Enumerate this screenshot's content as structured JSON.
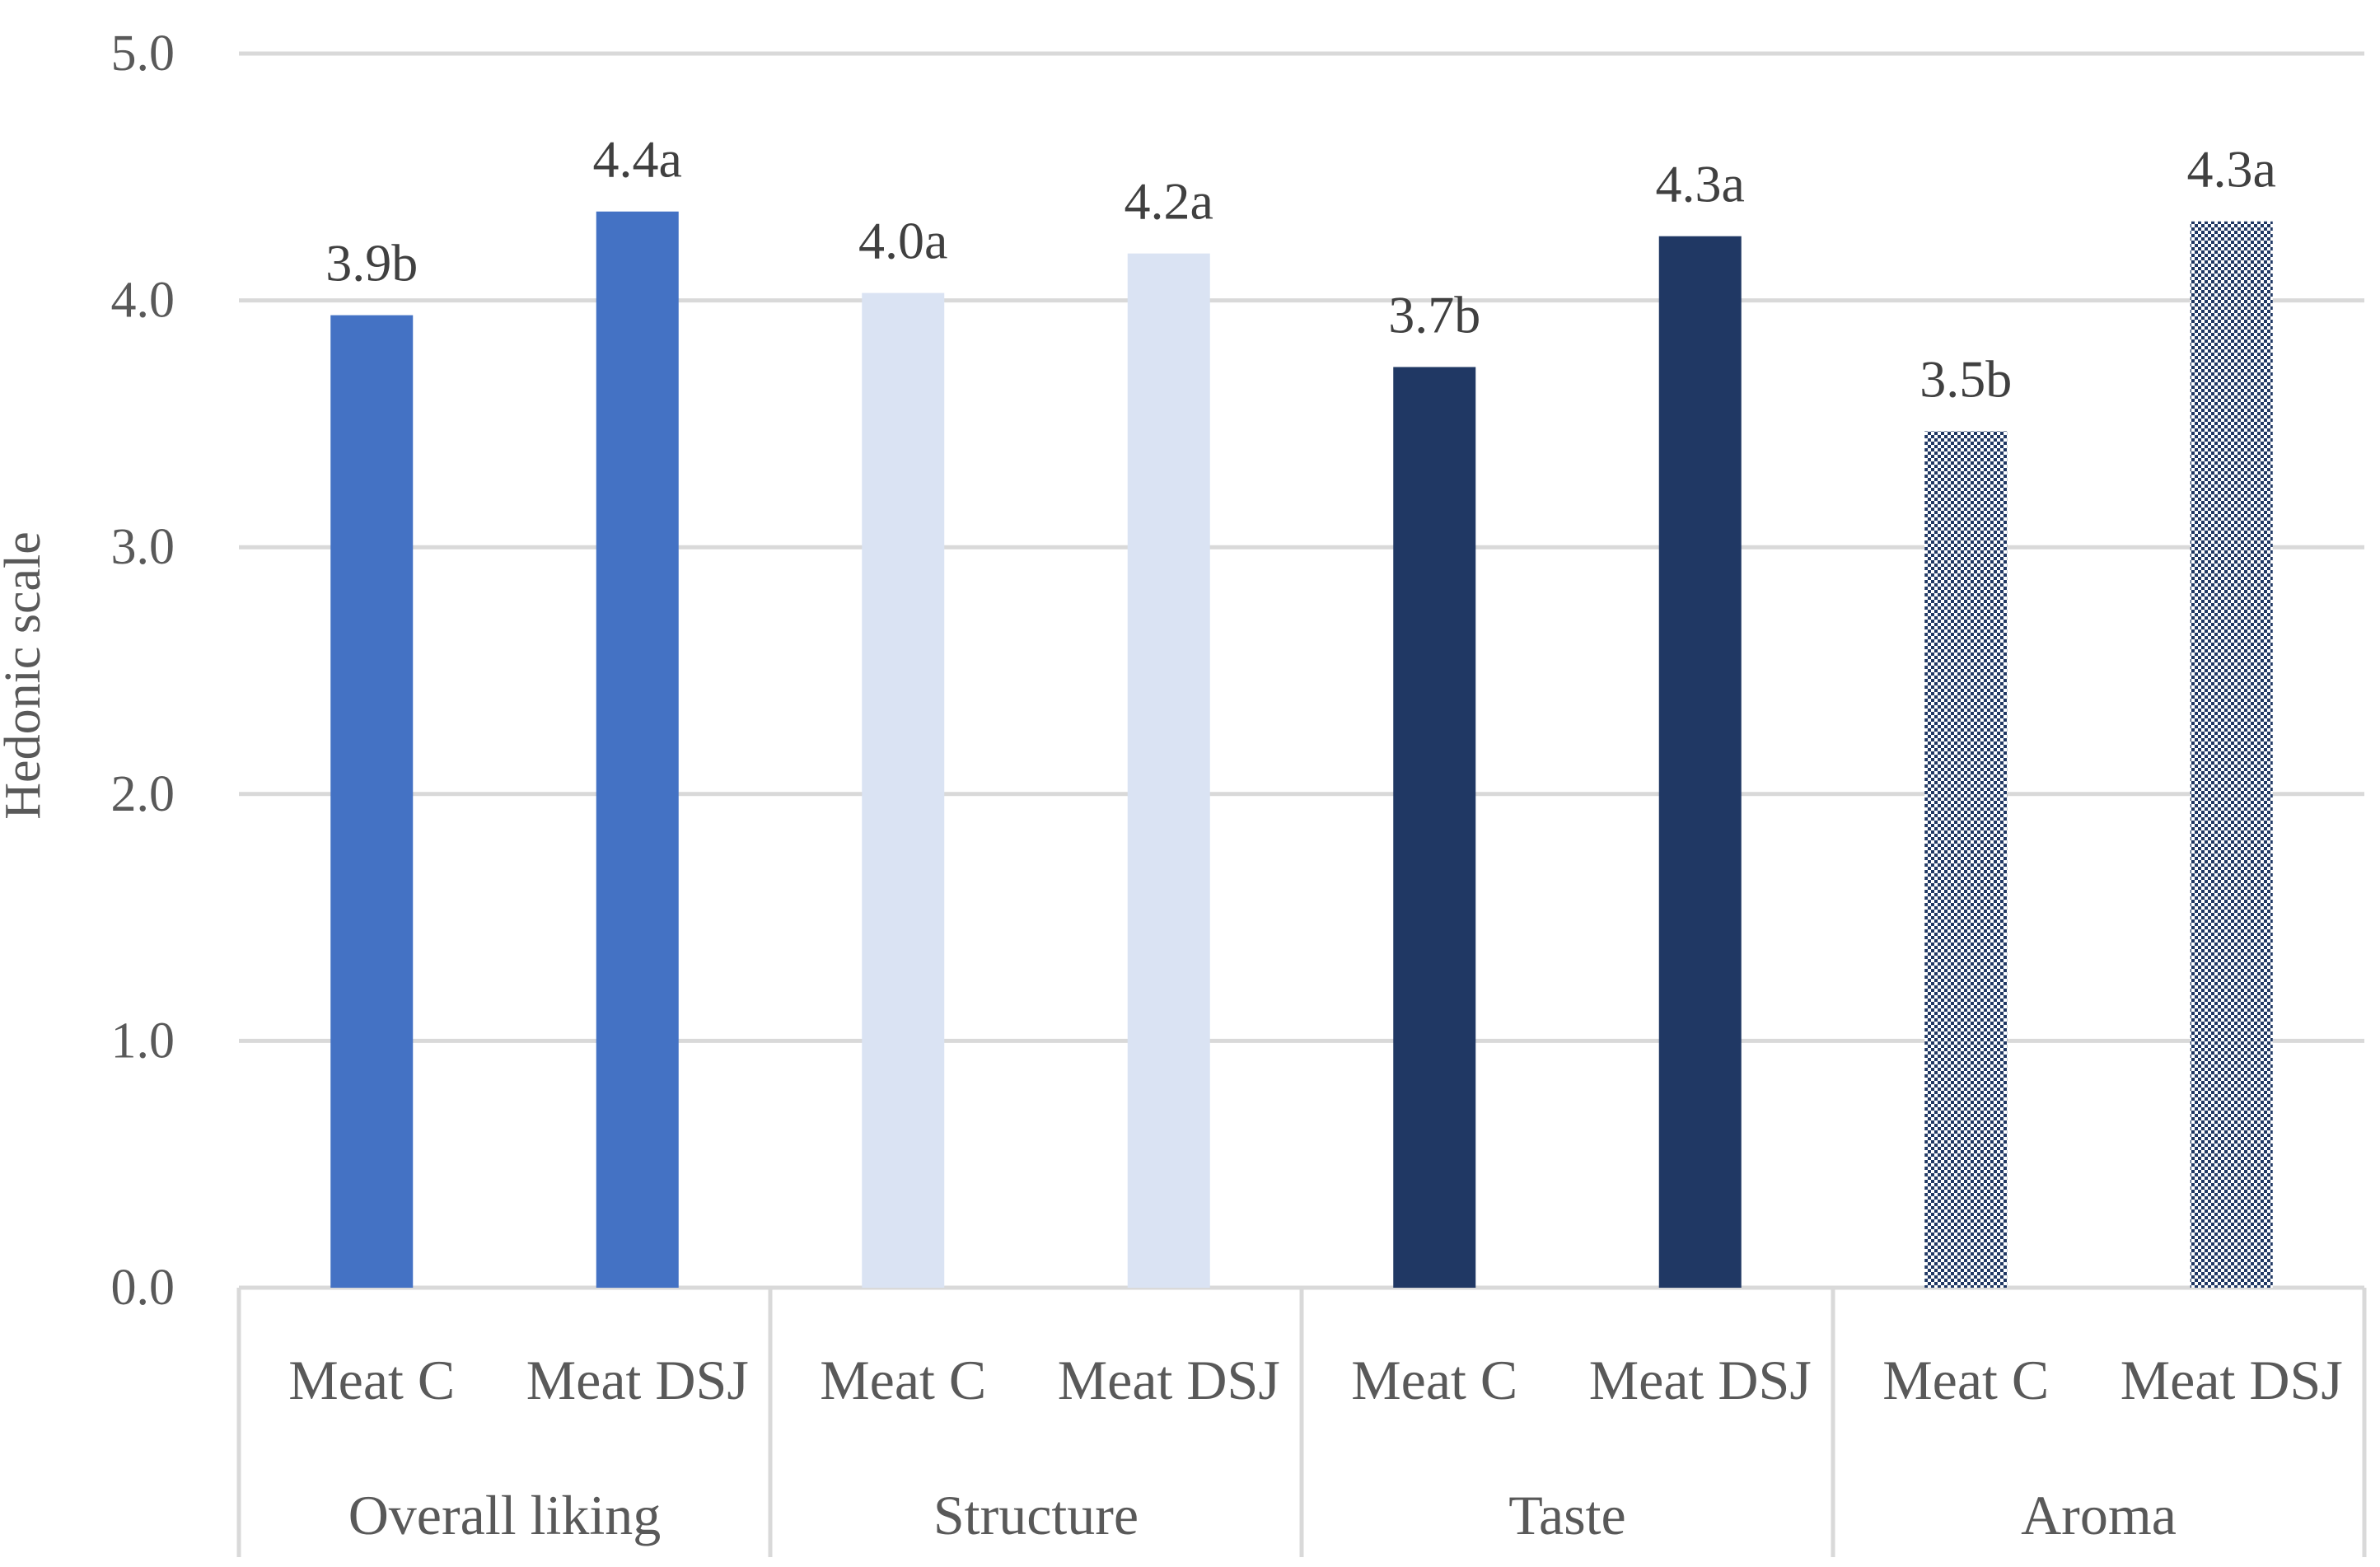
{
  "chart_data": {
    "type": "bar",
    "title": "",
    "xlabel": "",
    "ylabel": "Hedonic scale",
    "ylim": [
      0,
      5
    ],
    "yticks": [
      "0.0",
      "1.0",
      "2.0",
      "3.0",
      "4.0",
      "5.0"
    ],
    "grid": true,
    "groups": [
      {
        "name": "Overall liking",
        "bars": [
          {
            "label": "Meat C",
            "value": 3.94,
            "data_label": "3.9b",
            "color": "#4472c4",
            "pattern": false
          },
          {
            "label": "Meat DSJ",
            "value": 4.36,
            "data_label": "4.4a",
            "color": "#4472c4",
            "pattern": false
          }
        ]
      },
      {
        "name": "Structure",
        "bars": [
          {
            "label": "Meat C",
            "value": 4.03,
            "data_label": "4.0a",
            "color": "#dae3f3",
            "pattern": false
          },
          {
            "label": "Meat DSJ",
            "value": 4.19,
            "data_label": "4.2a",
            "color": "#dae3f3",
            "pattern": false
          }
        ]
      },
      {
        "name": "Taste",
        "bars": [
          {
            "label": "Meat C",
            "value": 3.73,
            "data_label": "3.7b",
            "color": "#203864",
            "pattern": false
          },
          {
            "label": "Meat DSJ",
            "value": 4.26,
            "data_label": "4.3a",
            "color": "#203864",
            "pattern": false
          }
        ]
      },
      {
        "name": "Aroma",
        "bars": [
          {
            "label": "Meat C",
            "value": 3.47,
            "data_label": "3.5b",
            "color": "#203864",
            "pattern": true
          },
          {
            "label": "Meat DSJ",
            "value": 4.32,
            "data_label": "4.3a",
            "color": "#203864",
            "pattern": true
          }
        ]
      }
    ]
  }
}
